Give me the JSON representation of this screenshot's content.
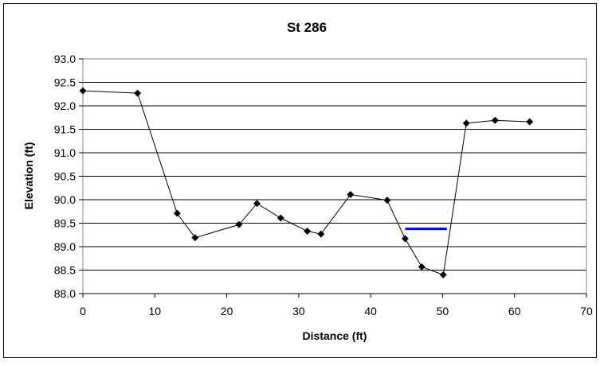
{
  "chart_data": {
    "type": "scatter",
    "title": "St 286",
    "xlabel": "Distance (ft)",
    "ylabel": "Elevation (ft)",
    "xlim": [
      0,
      70
    ],
    "ylim": [
      88.0,
      93.0
    ],
    "x_ticks": [
      "0",
      "10",
      "20",
      "30",
      "40",
      "50",
      "60",
      "70"
    ],
    "y_ticks": [
      "88.0",
      "88.5",
      "89.0",
      "89.5",
      "90.0",
      "90.5",
      "91.0",
      "91.5",
      "92.0",
      "92.5",
      "93.0"
    ],
    "grid": "horizontal",
    "legend": "none",
    "series": [
      {
        "mode": "line+markers",
        "color": "#000000",
        "marker": "diamond",
        "points": [
          {
            "x": 0,
            "y": 92.32
          },
          {
            "x": 7.6,
            "y": 92.27
          },
          {
            "x": 13.1,
            "y": 89.71
          },
          {
            "x": 15.6,
            "y": 89.19
          },
          {
            "x": 21.7,
            "y": 89.47
          },
          {
            "x": 24.2,
            "y": 89.92
          },
          {
            "x": 27.5,
            "y": 89.61
          },
          {
            "x": 31.2,
            "y": 89.33
          },
          {
            "x": 33.1,
            "y": 89.27
          },
          {
            "x": 37.2,
            "y": 90.11
          },
          {
            "x": 42.3,
            "y": 89.99
          },
          {
            "x": 44.8,
            "y": 89.17
          },
          {
            "x": 47.1,
            "y": 88.57
          },
          {
            "x": 50.1,
            "y": 88.4
          },
          {
            "x": 53.3,
            "y": 91.63
          },
          {
            "x": 57.3,
            "y": 91.69
          },
          {
            "x": 62.1,
            "y": 91.66
          }
        ]
      },
      {
        "mode": "line",
        "color": "#0000ff",
        "points": [
          {
            "x": 44.8,
            "y": 89.38
          },
          {
            "x": 50.6,
            "y": 89.38
          }
        ]
      }
    ]
  }
}
